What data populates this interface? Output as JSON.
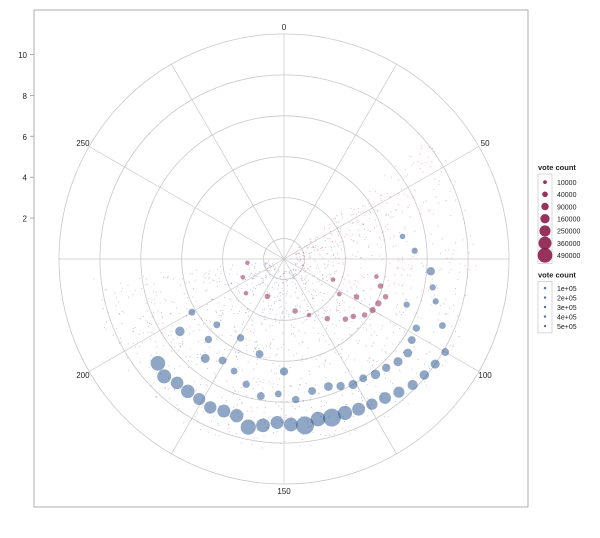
{
  "chart_data": {
    "type": "scatter",
    "coordinate_system": "polar",
    "radial_axis": {
      "range": [
        0,
        11
      ],
      "ticks": [
        2,
        4,
        6,
        8,
        10
      ],
      "tick_labels": [
        "2",
        "4",
        "6",
        "8",
        "10"
      ]
    },
    "angular_axis": {
      "range": [
        0,
        300
      ],
      "direction": "clockwise",
      "ticks": [
        0,
        50,
        100,
        150,
        200,
        250
      ],
      "tick_labels": [
        "0",
        "50",
        "100",
        "150",
        "200",
        "250"
      ]
    },
    "grid": true,
    "series": [
      {
        "color_hex": "#1f4e8c",
        "points": [
          {
            "a": 100,
            "r": 9.1,
            "v": 60000
          },
          {
            "a": 104,
            "r": 9.0,
            "v": 90000
          },
          {
            "a": 108,
            "r": 8.9,
            "v": 100000
          },
          {
            "a": 112,
            "r": 8.8,
            "v": 120000
          },
          {
            "a": 116,
            "r": 8.6,
            "v": 150000
          },
          {
            "a": 120,
            "r": 8.4,
            "v": 180000
          },
          {
            "a": 124,
            "r": 8.3,
            "v": 160000
          },
          {
            "a": 128,
            "r": 8.2,
            "v": 220000
          },
          {
            "a": 132,
            "r": 8.1,
            "v": 280000
          },
          {
            "a": 136,
            "r": 8.1,
            "v": 480000
          },
          {
            "a": 140,
            "r": 8.0,
            "v": 300000
          },
          {
            "a": 144,
            "r": 8.2,
            "v": 490000
          },
          {
            "a": 148,
            "r": 8.1,
            "v": 260000
          },
          {
            "a": 152,
            "r": 8.0,
            "v": 230000
          },
          {
            "a": 156,
            "r": 8.2,
            "v": 260000
          },
          {
            "a": 160,
            "r": 8.4,
            "v": 330000
          },
          {
            "a": 164,
            "r": 8.0,
            "v": 240000
          },
          {
            "a": 168,
            "r": 8.0,
            "v": 220000
          },
          {
            "a": 172,
            "r": 8.1,
            "v": 200000
          },
          {
            "a": 176,
            "r": 8.0,
            "v": 190000
          },
          {
            "a": 180,
            "r": 8.0,
            "v": 250000
          },
          {
            "a": 184,
            "r": 8.0,
            "v": 210000
          },
          {
            "a": 188,
            "r": 8.2,
            "v": 270000
          },
          {
            "a": 192,
            "r": 8.0,
            "v": 300000
          },
          {
            "a": 94,
            "r": 8.4,
            "v": 40000
          },
          {
            "a": 88,
            "r": 7.7,
            "v": 30000
          },
          {
            "a": 84,
            "r": 7.4,
            "v": 30000
          },
          {
            "a": 79,
            "r": 7.2,
            "v": 70000
          },
          {
            "a": 98,
            "r": 7.3,
            "v": 50000
          },
          {
            "a": 102,
            "r": 7.4,
            "v": 60000
          },
          {
            "a": 106,
            "r": 7.6,
            "v": 80000
          },
          {
            "a": 110,
            "r": 7.5,
            "v": 90000
          },
          {
            "a": 114,
            "r": 7.3,
            "v": 70000
          },
          {
            "a": 118,
            "r": 7.2,
            "v": 100000
          },
          {
            "a": 122,
            "r": 7.0,
            "v": 60000
          },
          {
            "a": 126,
            "r": 7.0,
            "v": 90000
          },
          {
            "a": 130,
            "r": 6.8,
            "v": 70000
          },
          {
            "a": 134,
            "r": 6.6,
            "v": 80000
          },
          {
            "a": 140,
            "r": 6.6,
            "v": 60000
          },
          {
            "a": 146,
            "r": 6.9,
            "v": 50000
          },
          {
            "a": 152,
            "r": 6.6,
            "v": 40000
          },
          {
            "a": 158,
            "r": 6.8,
            "v": 60000
          },
          {
            "a": 164,
            "r": 6.4,
            "v": 50000
          },
          {
            "a": 170,
            "r": 6.0,
            "v": 40000
          },
          {
            "a": 176,
            "r": 5.8,
            "v": 60000
          },
          {
            "a": 182,
            "r": 6.2,
            "v": 90000
          },
          {
            "a": 186,
            "r": 5.4,
            "v": 50000
          },
          {
            "a": 196,
            "r": 6.2,
            "v": 100000
          },
          {
            "a": 200,
            "r": 5.2,
            "v": 40000
          },
          {
            "a": 150,
            "r": 5.5,
            "v": 70000
          },
          {
            "a": 162,
            "r": 4.8,
            "v": 60000
          },
          {
            "a": 174,
            "r": 4.4,
            "v": 50000
          },
          {
            "a": 188,
            "r": 4.6,
            "v": 40000
          },
          {
            "a": 72,
            "r": 6.4,
            "v": 30000
          },
          {
            "a": 66,
            "r": 5.9,
            "v": 20000
          },
          {
            "a": 92,
            "r": 6.4,
            "v": 30000
          }
        ]
      },
      {
        "color_hex": "#8c1c4a",
        "points": [
          {
            "a": 92,
            "r": 5.3,
            "v": 20000
          },
          {
            "a": 96,
            "r": 5.1,
            "v": 30000
          },
          {
            "a": 100,
            "r": 5.0,
            "v": 30000
          },
          {
            "a": 104,
            "r": 4.8,
            "v": 20000
          },
          {
            "a": 108,
            "r": 4.4,
            "v": 20000
          },
          {
            "a": 112,
            "r": 4.2,
            "v": 20000
          },
          {
            "a": 88,
            "r": 4.9,
            "v": 20000
          },
          {
            "a": 84,
            "r": 4.6,
            "v": 10000
          },
          {
            "a": 98,
            "r": 4.0,
            "v": 20000
          },
          {
            "a": 120,
            "r": 3.6,
            "v": 20000
          },
          {
            "a": 130,
            "r": 3.0,
            "v": 10000
          },
          {
            "a": 140,
            "r": 2.6,
            "v": 20000
          },
          {
            "a": 102,
            "r": 3.2,
            "v": 10000
          },
          {
            "a": 94,
            "r": 2.6,
            "v": 10000
          },
          {
            "a": 170,
            "r": 2.0,
            "v": 20000
          },
          {
            "a": 190,
            "r": 2.5,
            "v": 10000
          },
          {
            "a": 205,
            "r": 2.2,
            "v": 10000
          },
          {
            "a": 220,
            "r": 1.8,
            "v": 10000
          }
        ]
      }
    ],
    "legends": [
      {
        "title": "vote count",
        "entries": [
          {
            "label": "10000",
            "v": 10000
          },
          {
            "label": "40000",
            "v": 40000
          },
          {
            "label": "90000",
            "v": 90000
          },
          {
            "label": "160000",
            "v": 160000
          },
          {
            "label": "250000",
            "v": 250000
          },
          {
            "label": "360000",
            "v": 360000
          },
          {
            "label": "490000",
            "v": 490000
          }
        ],
        "color_hex": "#8c1c4a"
      },
      {
        "title": "vote count",
        "entries": [
          {
            "label": "1e+05",
            "v": 100000
          },
          {
            "label": "2e+05",
            "v": 200000
          },
          {
            "label": "3e+05",
            "v": 300000
          },
          {
            "label": "4e+05",
            "v": 400000
          },
          {
            "label": "5e+05",
            "v": 500000
          }
        ],
        "color_hex": "#1f4e8c"
      }
    ],
    "colors": {
      "grid": "#c8c8c8",
      "panel_border": "#9a9a9a",
      "text": "#222222"
    }
  }
}
